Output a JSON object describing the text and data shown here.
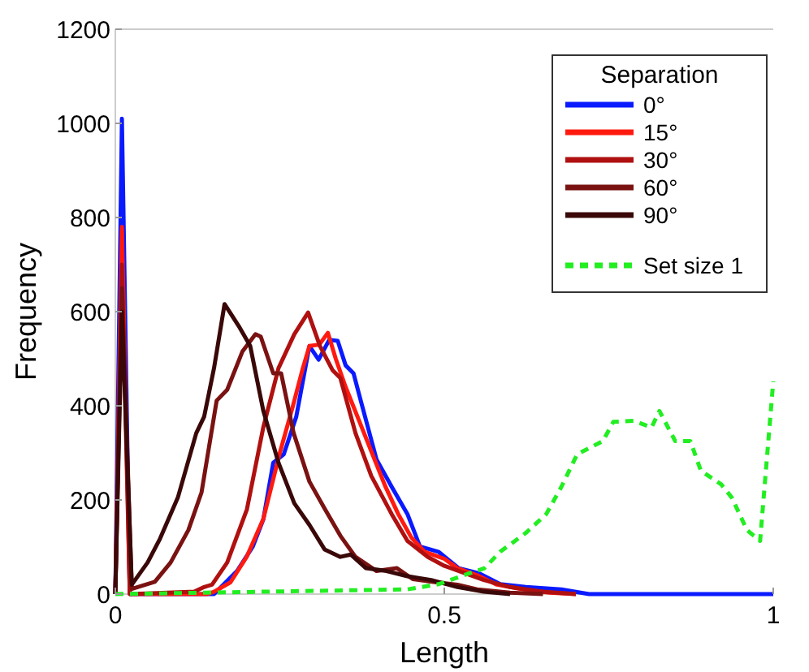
{
  "chart_data": {
    "type": "line",
    "xlabel": "Length",
    "ylabel": "Frequency",
    "legend_title": "Separation",
    "xlim": [
      0,
      1
    ],
    "ylim": [
      0,
      1200
    ],
    "xticks": [
      0,
      0.5,
      1
    ],
    "yticks": [
      0,
      200,
      400,
      600,
      800,
      1000,
      1200
    ],
    "legend": "top right",
    "grid": false,
    "line_style": "solid",
    "series": [
      {
        "name": "0°",
        "color": "#0a1aff",
        "x": [
          0,
          0.01,
          0.022,
          0.15,
          0.185,
          0.209,
          0.225,
          0.24,
          0.256,
          0.275,
          0.295,
          0.309,
          0.325,
          0.338,
          0.35,
          0.362,
          0.373,
          0.397,
          0.42,
          0.444,
          0.463,
          0.491,
          0.522,
          0.553,
          0.585,
          0.624,
          0.678,
          0.72,
          1
        ],
        "values": [
          0,
          1010,
          0,
          0,
          49,
          101,
          159,
          279,
          297,
          377,
          527,
          498,
          540,
          538,
          486,
          469,
          411,
          286,
          228,
          170,
          101,
          90,
          55,
          44,
          21,
          15,
          10,
          0,
          0
        ]
      },
      {
        "name": "15°",
        "color": "#ff1a10",
        "x": [
          0,
          0.01,
          0.022,
          0.14,
          0.15,
          0.175,
          0.2,
          0.225,
          0.25,
          0.27,
          0.285,
          0.295,
          0.31,
          0.323,
          0.335,
          0.35,
          0.37,
          0.39,
          0.41,
          0.43,
          0.45,
          0.47,
          0.49,
          0.5,
          0.52,
          0.55,
          0.58,
          0.62,
          0.66,
          0.7
        ],
        "values": [
          0,
          780,
          0,
          0,
          5,
          25,
          80,
          160,
          300,
          400,
          480,
          527,
          530,
          555,
          500,
          440,
          370,
          300,
          230,
          170,
          120,
          90,
          80,
          75,
          55,
          40,
          20,
          10,
          3,
          0
        ]
      },
      {
        "name": "30°",
        "color": "#b01010",
        "x": [
          0,
          0.01,
          0.022,
          0.12,
          0.135,
          0.147,
          0.17,
          0.2,
          0.225,
          0.248,
          0.272,
          0.293,
          0.311,
          0.33,
          0.342,
          0.365,
          0.389,
          0.42,
          0.444,
          0.475,
          0.5,
          0.53,
          0.56,
          0.6,
          0.65,
          0.7
        ],
        "values": [
          0,
          700,
          0,
          5,
          15,
          20,
          67,
          180,
          355,
          480,
          552,
          598,
          527,
          476,
          459,
          342,
          251,
          170,
          113,
          79,
          60,
          45,
          30,
          15,
          5,
          0
        ]
      },
      {
        "name": "60°",
        "color": "#7a1212",
        "x": [
          0,
          0.01,
          0.025,
          0.06,
          0.084,
          0.111,
          0.131,
          0.154,
          0.17,
          0.193,
          0.213,
          0.221,
          0.24,
          0.252,
          0.271,
          0.295,
          0.318,
          0.342,
          0.365,
          0.397,
          0.428,
          0.452,
          0.483,
          0.52,
          0.55,
          0.6,
          0.65
        ],
        "values": [
          0,
          650,
          11,
          26,
          67,
          136,
          216,
          411,
          434,
          515,
          552,
          547,
          469,
          469,
          342,
          239,
          182,
          124,
          79,
          49,
          55,
          32,
          26,
          20,
          10,
          3,
          0
        ]
      },
      {
        "name": "90°",
        "color": "#3a0808",
        "x": [
          0,
          0.01,
          0.025,
          0.049,
          0.068,
          0.095,
          0.123,
          0.135,
          0.15,
          0.166,
          0.189,
          0.205,
          0.225,
          0.248,
          0.272,
          0.295,
          0.318,
          0.342,
          0.358,
          0.381,
          0.412,
          0.444,
          0.48,
          0.52,
          0.56,
          0.6
        ],
        "values": [
          0,
          600,
          20,
          67,
          118,
          205,
          342,
          377,
          480,
          616,
          566,
          527,
          389,
          279,
          193,
          147,
          95,
          79,
          84,
          55,
          49,
          38,
          30,
          15,
          5,
          0
        ]
      },
      {
        "name": "Set size 1",
        "color": "#22ee22",
        "line_style": "dashed",
        "x": [
          0,
          0.444,
          0.491,
          0.538,
          0.561,
          0.585,
          0.624,
          0.655,
          0.678,
          0.702,
          0.741,
          0.757,
          0.788,
          0.815,
          0.827,
          0.851,
          0.874,
          0.89,
          0.921,
          0.937,
          0.96,
          0.98,
          1
        ],
        "values": [
          0,
          10,
          21,
          44,
          55,
          90,
          130,
          170,
          228,
          297,
          325,
          366,
          368,
          354,
          389,
          325,
          325,
          262,
          233,
          205,
          136,
          113,
          452
        ]
      }
    ]
  }
}
